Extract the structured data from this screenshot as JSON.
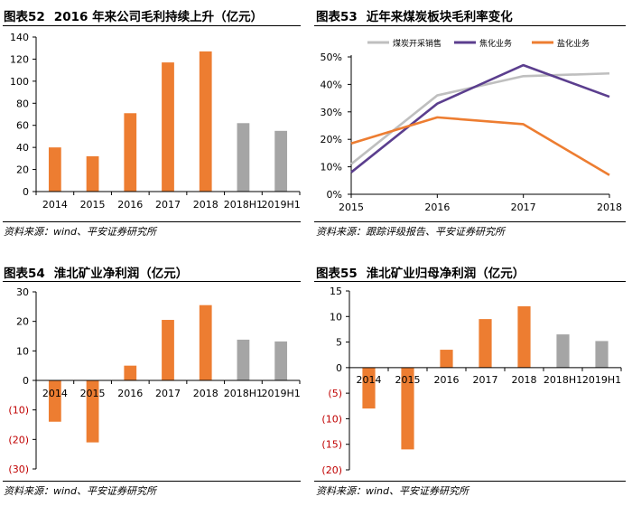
{
  "source_text_wind": "资料来源：wind、平安证券研究所",
  "source_text_track": "资料来源：跟踪评级报告、平安证券研究所",
  "colors": {
    "orange": "#ED7D31",
    "gray": "#A5A5A5",
    "purple": "#5B3E8E",
    "line_gray": "#BFBFBF",
    "neg_label": "#C00000"
  },
  "charts": [
    {
      "id": "c52",
      "number": "图表52",
      "title": "2016 年来公司毛利持续上升（亿元）",
      "source": "资料来源：wind、平安证券研究所"
    },
    {
      "id": "c53",
      "number": "图表53",
      "title": "近年来煤炭板块毛利率变化",
      "source": "资料来源：跟踪评级报告、平安证券研究所"
    },
    {
      "id": "c54",
      "number": "图表54",
      "title": "淮北矿业净利润（亿元）",
      "source": "资料来源：wind、平安证券研究所"
    },
    {
      "id": "c55",
      "number": "图表55",
      "title": "淮北矿业归母净利润（亿元）",
      "source": "资料来源：wind、平安证券研究所"
    }
  ],
  "chart_data": [
    {
      "id": "c52",
      "type": "bar",
      "title": "2016 年来公司毛利持续上升（亿元）",
      "categories": [
        "2014",
        "2015",
        "2016",
        "2017",
        "2018",
        "2018H1",
        "2019H1"
      ],
      "values": [
        40,
        32,
        71,
        117,
        127,
        62,
        55
      ],
      "bar_colors": [
        "orange",
        "orange",
        "orange",
        "orange",
        "orange",
        "gray",
        "gray"
      ],
      "yticks": [
        "0",
        "20",
        "40",
        "60",
        "80",
        "100",
        "120",
        "140"
      ],
      "ylim": [
        0,
        140
      ]
    },
    {
      "id": "c53",
      "type": "line",
      "title": "近年来煤炭板块毛利率变化",
      "categories": [
        "2015",
        "2016",
        "2017",
        "2018"
      ],
      "series": [
        {
          "name": "煤炭开采销售",
          "values": [
            11,
            36,
            43,
            44
          ],
          "color": "line_gray"
        },
        {
          "name": "焦化业务",
          "values": [
            8,
            33,
            47,
            35.5
          ],
          "color": "purple"
        },
        {
          "name": "盐化业务",
          "values": [
            18.5,
            28,
            25.5,
            7
          ],
          "color": "orange"
        }
      ],
      "yticks": [
        "0%",
        "10%",
        "20%",
        "30%",
        "40%",
        "50%"
      ],
      "ylim": [
        0,
        50
      ],
      "legend": "top"
    },
    {
      "id": "c54",
      "type": "bar",
      "title": "淮北矿业净利润（亿元）",
      "categories": [
        "2014",
        "2015",
        "2016",
        "2017",
        "2018",
        "2018H1",
        "2019H1"
      ],
      "values": [
        -14,
        -21,
        5,
        20.5,
        25.5,
        13.8,
        13.2
      ],
      "bar_colors": [
        "orange",
        "orange",
        "orange",
        "orange",
        "orange",
        "gray",
        "gray"
      ],
      "yticks": [
        "(30)",
        "(20)",
        "(10)",
        "0",
        "10",
        "20",
        "30"
      ],
      "ylim": [
        -30,
        30
      ]
    },
    {
      "id": "c55",
      "type": "bar",
      "title": "淮北矿业归母净利润（亿元）",
      "categories": [
        "2014",
        "2015",
        "2016",
        "2017",
        "2018",
        "2018H1",
        "2019H1"
      ],
      "values": [
        -8,
        -16,
        3.5,
        9.5,
        12,
        6.5,
        5.2
      ],
      "bar_colors": [
        "orange",
        "orange",
        "orange",
        "orange",
        "orange",
        "gray",
        "gray"
      ],
      "yticks": [
        "(20)",
        "(15)",
        "(10)",
        "(5)",
        "0",
        "5",
        "10",
        "15"
      ],
      "ylim": [
        -20,
        15
      ]
    }
  ]
}
